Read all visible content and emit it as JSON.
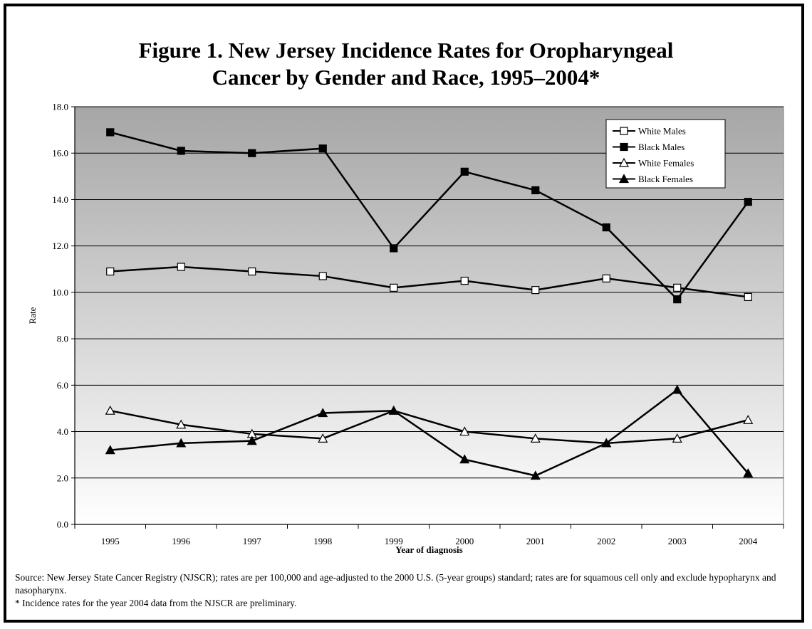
{
  "title_lines": [
    "Figure 1. New Jersey Incidence Rates for Oropharyngeal",
    "Cancer by Gender and Race, 1995–2004*"
  ],
  "footnotes": [
    "Source: New Jersey State Cancer Registry (NJSCR); rates are per 100,000 and age-adjusted to the 2000 U.S. (5-year groups) standard; rates are for squamous cell only and exclude hypopharynx and nasopharynx.",
    "* Incidence rates for the year 2004 data from the NJSCR are preliminary."
  ],
  "chart_data": {
    "type": "line",
    "title": "Figure 1. New Jersey Incidence Rates for Oropharyngeal Cancer by Gender and Race, 1995–2004*",
    "xlabel": "Year of diagnosis",
    "ylabel": "Rate",
    "ylim": [
      0,
      18
    ],
    "yticks": [
      "0.0",
      "2.0",
      "4.0",
      "6.0",
      "8.0",
      "10.0",
      "12.0",
      "14.0",
      "16.0",
      "18.0"
    ],
    "categories": [
      "1995",
      "1996",
      "1997",
      "1998",
      "1999",
      "2000",
      "2001",
      "2002",
      "2003",
      "2004"
    ],
    "grid": true,
    "legend_position": "top-right",
    "series": [
      {
        "name": "White Males",
        "marker": "square-open",
        "values": [
          10.9,
          11.1,
          10.9,
          10.7,
          10.2,
          10.5,
          10.1,
          10.6,
          10.2,
          9.8
        ]
      },
      {
        "name": "Black Males",
        "marker": "square-filled",
        "values": [
          16.9,
          16.1,
          16.0,
          16.2,
          11.9,
          15.2,
          14.4,
          12.8,
          9.7,
          13.9
        ]
      },
      {
        "name": "White Females",
        "marker": "triangle-open",
        "values": [
          4.9,
          4.3,
          3.9,
          3.7,
          4.9,
          4.0,
          3.7,
          3.5,
          3.7,
          4.5
        ]
      },
      {
        "name": "Black Females",
        "marker": "triangle-filled",
        "values": [
          3.2,
          3.5,
          3.6,
          4.8,
          4.9,
          2.8,
          2.1,
          3.5,
          5.8,
          2.2
        ]
      }
    ],
    "colors": {
      "line": "#000000",
      "plot_gradient_top": "#a6a6a6",
      "plot_gradient_bottom": "#ffffff"
    }
  }
}
